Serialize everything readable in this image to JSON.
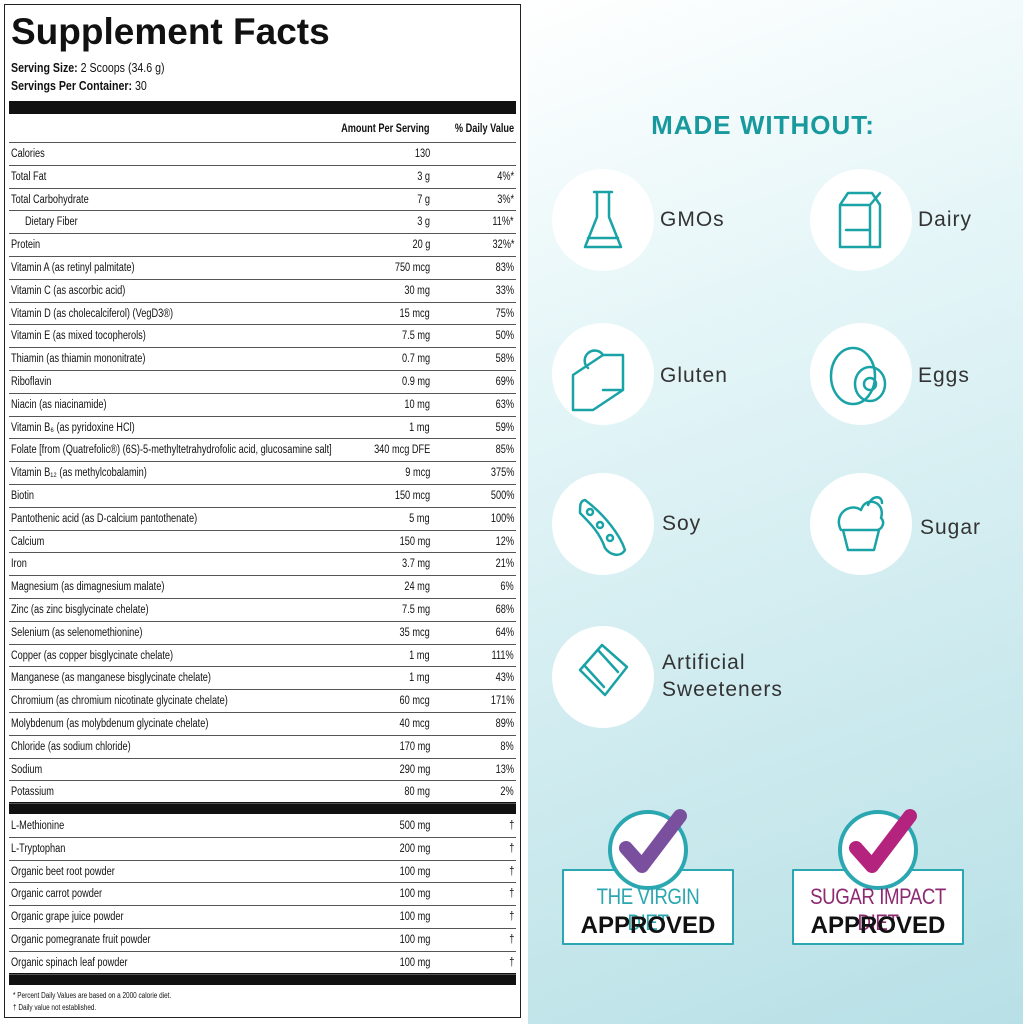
{
  "facts": {
    "title": "Supplement Facts",
    "serving_size": {
      "label": "Serving Size:",
      "value": "2 Scoops (34.6 g)"
    },
    "servings_per_container": {
      "label": "Servings Per Container:",
      "value": "30"
    },
    "header": {
      "amount": "Amount Per Serving",
      "dv": "% Daily Value"
    },
    "rows": [
      {
        "name": "Calories",
        "amount": "130"
      },
      {
        "name": "Total Fat",
        "amount": "3 g",
        "dv": "4%*"
      },
      {
        "name": "Total Carbohydrate",
        "amount": "7 g",
        "dv": "3%*"
      },
      {
        "name": "Dietary Fiber",
        "amount": "3 g",
        "dv": "11%*",
        "indent": true
      },
      {
        "name": "Protein",
        "amount": "20 g",
        "dv": "32%*"
      },
      {
        "name": "Vitamin A (as retinyl palmitate)",
        "amount": "750 mcg",
        "dv": "83%"
      },
      {
        "name": "Vitamin C (as ascorbic acid)",
        "amount": "30 mg",
        "dv": "33%"
      },
      {
        "name": "Vitamin D (as cholecalciferol) (VegD3®)",
        "amount": "15 mcg",
        "dv": "75%"
      },
      {
        "name": "Vitamin E (as mixed tocopherols)",
        "amount": "7.5 mg",
        "dv": "50%"
      },
      {
        "name": "Thiamin (as thiamin mononitrate)",
        "amount": "0.7 mg",
        "dv": "58%"
      },
      {
        "name": "Riboflavin",
        "amount": "0.9 mg",
        "dv": "69%"
      },
      {
        "name": "Niacin (as niacinamide)",
        "amount": "10 mg",
        "dv": "63%"
      },
      {
        "name": "Vitamin B₆ (as pyridoxine HCl)",
        "amount": "1 mg",
        "dv": "59%"
      },
      {
        "name": "Folate [from (Quatrefolic®) (6S)-5-methyltetrahydrofolic acid, glucosamine salt]",
        "amount": "340 mcg DFE",
        "dv": "85%"
      },
      {
        "name": "Vitamin B₁₂ (as methylcobalamin)",
        "amount": "9 mcg",
        "dv": "375%"
      },
      {
        "name": "Biotin",
        "amount": "150 mcg",
        "dv": "500%"
      },
      {
        "name": "Pantothenic acid (as D-calcium pantothenate)",
        "amount": "5 mg",
        "dv": "100%"
      },
      {
        "name": "Calcium",
        "amount": "150 mg",
        "dv": "12%"
      },
      {
        "name": "Iron",
        "amount": "3.7 mg",
        "dv": "21%"
      },
      {
        "name": "Magnesium (as dimagnesium malate)",
        "amount": "24 mg",
        "dv": "6%"
      },
      {
        "name": "Zinc (as zinc bisglycinate chelate)",
        "amount": "7.5 mg",
        "dv": "68%"
      },
      {
        "name": "Selenium (as selenomethionine)",
        "amount": "35 mcg",
        "dv": "64%"
      },
      {
        "name": "Copper (as copper bisglycinate chelate)",
        "amount": "1 mg",
        "dv": "111%"
      },
      {
        "name": "Manganese (as manganese bisglycinate chelate)",
        "amount": "1 mg",
        "dv": "43%"
      },
      {
        "name": "Chromium (as chromium nicotinate glycinate chelate)",
        "amount": "60 mcg",
        "dv": "171%"
      },
      {
        "name": "Molybdenum (as molybdenum glycinate chelate)",
        "amount": "40 mcg",
        "dv": "89%"
      },
      {
        "name": "Chloride (as sodium chloride)",
        "amount": "170 mg",
        "dv": "8%"
      },
      {
        "name": "Sodium",
        "amount": "290 mg",
        "dv": "13%"
      },
      {
        "name": "Potassium",
        "amount": "80 mg",
        "dv": "2%"
      }
    ],
    "rows2": [
      {
        "name": "L-Methionine",
        "amount": "500 mg",
        "dv": "†"
      },
      {
        "name": "L-Tryptophan",
        "amount": "200 mg",
        "dv": "†"
      },
      {
        "name": "Organic beet root powder",
        "amount": "100 mg",
        "dv": "†"
      },
      {
        "name": "Organic carrot powder",
        "amount": "100 mg",
        "dv": "†"
      },
      {
        "name": "Organic grape juice powder",
        "amount": "100 mg",
        "dv": "†"
      },
      {
        "name": "Organic pomegranate fruit powder",
        "amount": "100 mg",
        "dv": "†"
      },
      {
        "name": "Organic spinach leaf powder",
        "amount": "100 mg",
        "dv": "†"
      }
    ],
    "footnotes": [
      "* Percent Daily Values are based on a 2000 calorie diet.",
      "† Daily value not established."
    ]
  },
  "made_without": {
    "title": "MADE WITHOUT:",
    "items": [
      "GMOs",
      "Dairy",
      "Gluten",
      "Eggs",
      "Soy",
      "Sugar",
      "Artificial Sweeteners"
    ]
  },
  "badges": [
    {
      "name": "THE VIRGIN DIET",
      "status": "APPROVED"
    },
    {
      "name": "SUGAR IMPACT DIET",
      "status": "APPROVED"
    }
  ]
}
